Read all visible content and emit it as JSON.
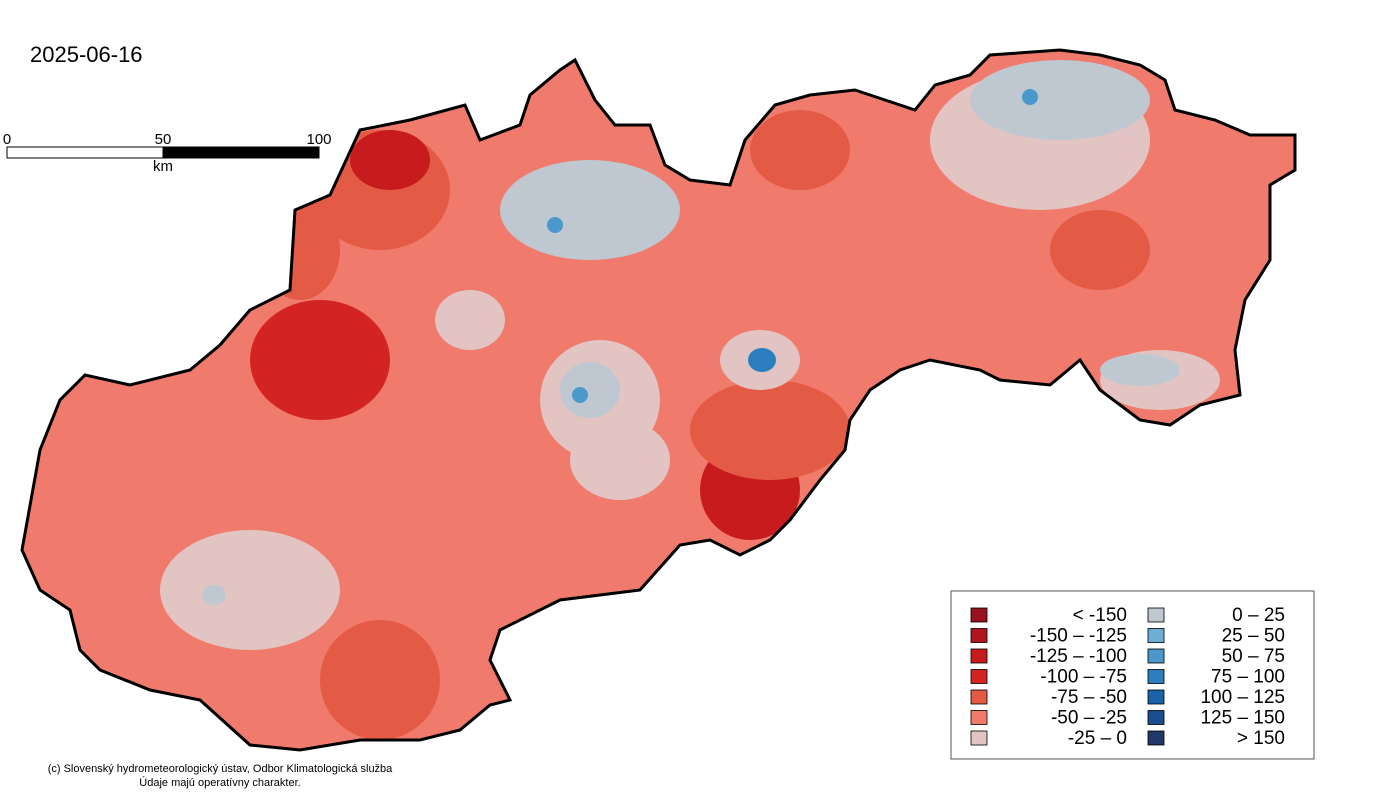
{
  "date": "2025-06-16",
  "scale_bar": {
    "ticks": [
      0,
      50,
      100
    ],
    "unit": "km"
  },
  "legend": [
    {
      "label": "< -150",
      "color": "#99101f"
    },
    {
      "label": "-150 – -125",
      "color": "#b2141e"
    },
    {
      "label": "-125 – -100",
      "color": "#c81b1e"
    },
    {
      "label": "-100 –   -75",
      "color": "#d42323"
    },
    {
      "label": "-75 –   -50",
      "color": "#e35a45"
    },
    {
      "label": "-50 –   -25",
      "color": "#f07b6c"
    },
    {
      "label": "-25 –     0",
      "color": "#e2c4c2"
    },
    {
      "label": "0 –   25",
      "color": "#bfc8d0"
    },
    {
      "label": "25 –   50",
      "color": "#6fadd6"
    },
    {
      "label": "50 –   75",
      "color": "#4a98cc"
    },
    {
      "label": "75 – 100",
      "color": "#2b7fc0"
    },
    {
      "label": "100 – 125",
      "color": "#1b63a8"
    },
    {
      "label": "125 – 150",
      "color": "#1a4e8f"
    },
    {
      "label": "> 150",
      "color": "#1f3a66"
    }
  ],
  "credits": [
    "(c) Slovenský hydrometeorologický ústav, Odbor Klimatologická služba",
    "Údaje majú operatívny charakter."
  ]
}
